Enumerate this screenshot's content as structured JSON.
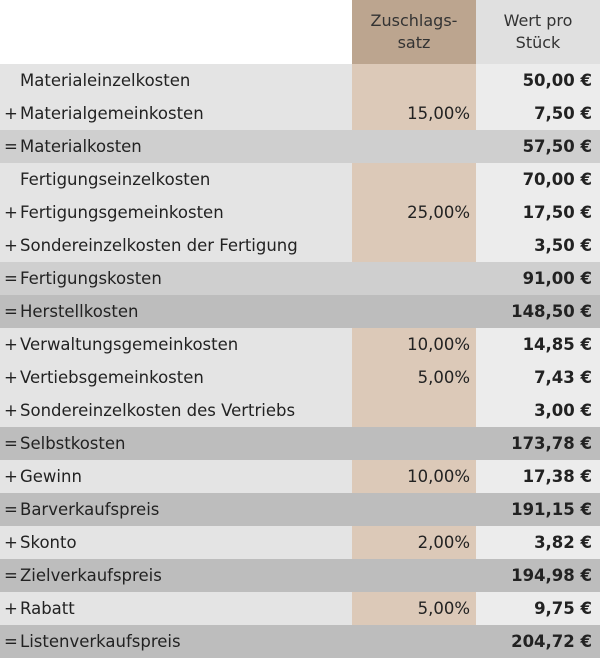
{
  "header": {
    "rate_label": "Zuschlags-\nsatz",
    "value_label": "Wert pro\nStück"
  },
  "rows": [
    {
      "sign": "",
      "label": "Materialeinzelkosten",
      "rate": "",
      "value": "50,00 €",
      "type": "base"
    },
    {
      "sign": "+",
      "label": "Materialgemeinkosten",
      "rate": "15,00%",
      "value": "7,50 €",
      "type": "base"
    },
    {
      "sign": "=",
      "label": "Materialkosten",
      "rate": "",
      "value": "57,50 €",
      "type": "sub"
    },
    {
      "sign": "",
      "label": "Fertigungseinzelkosten",
      "rate": "",
      "value": "70,00 €",
      "type": "base"
    },
    {
      "sign": "+",
      "label": "Fertigungsgemeinkosten",
      "rate": "25,00%",
      "value": "17,50 €",
      "type": "base"
    },
    {
      "sign": "+",
      "label": "Sondereinzelkosten der Fertigung",
      "rate": "",
      "value": "3,50 €",
      "type": "base"
    },
    {
      "sign": "=",
      "label": "Fertigungskosten",
      "rate": "",
      "value": "91,00 €",
      "type": "sub"
    },
    {
      "sign": "=",
      "label": "Herstellkosten",
      "rate": "",
      "value": "148,50 €",
      "type": "total"
    },
    {
      "sign": "+",
      "label": "Verwaltungsgemeinkosten",
      "rate": "10,00%",
      "value": "14,85 €",
      "type": "base"
    },
    {
      "sign": "+",
      "label": "Vertiebsgemeinkosten",
      "rate": "5,00%",
      "value": "7,43 €",
      "type": "base"
    },
    {
      "sign": "+",
      "label": "Sondereinzelkosten des Vertriebs",
      "rate": "",
      "value": "3,00 €",
      "type": "base"
    },
    {
      "sign": "=",
      "label": "Selbstkosten",
      "rate": "",
      "value": "173,78 €",
      "type": "total"
    },
    {
      "sign": "+",
      "label": "Gewinn",
      "rate": "10,00%",
      "value": "17,38 €",
      "type": "base"
    },
    {
      "sign": "=",
      "label": "Barverkaufspreis",
      "rate": "",
      "value": "191,15 €",
      "type": "total"
    },
    {
      "sign": "+",
      "label": "Skonto",
      "rate": "2,00%",
      "value": "3,82 €",
      "type": "base"
    },
    {
      "sign": "=",
      "label": "Zielverkaufspreis",
      "rate": "",
      "value": "194,98 €",
      "type": "total"
    },
    {
      "sign": "+",
      "label": "Rabatt",
      "rate": "5,00%",
      "value": "9,75 €",
      "type": "base"
    },
    {
      "sign": "=",
      "label": "Listenverkaufspreis",
      "rate": "",
      "value": "204,72 €",
      "type": "total"
    }
  ],
  "colors": {
    "rate_header": "#bca58f",
    "rate_cell": "#dcc9b8",
    "label_cell": "#e4e4e4",
    "subtotal": "#cfcfcf",
    "total": "#bdbdbd"
  }
}
